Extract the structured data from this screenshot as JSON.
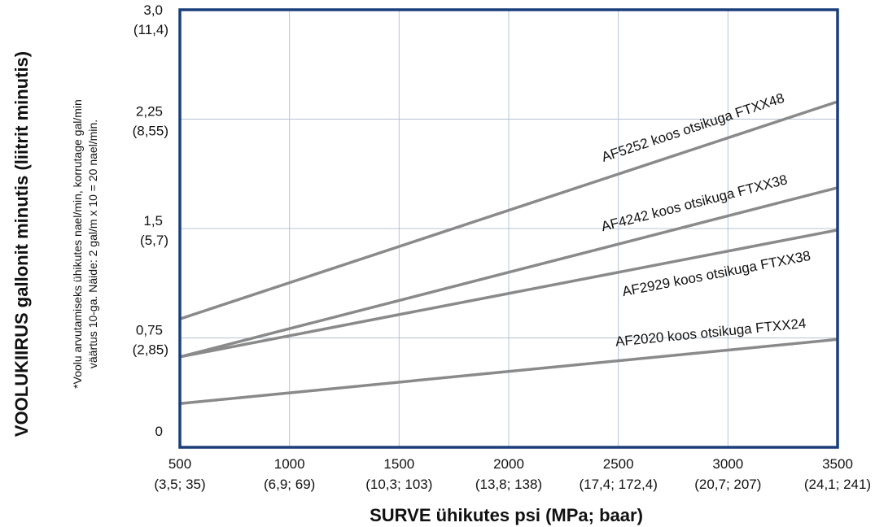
{
  "chart_data": {
    "type": "line",
    "xlabel": "SURVE ühikutes psi (MPa; baar)",
    "ylabel_bold": "VOOLUKIIRUS",
    "ylabel_rest": " gallonit minutis (liitrit minutis)",
    "note_lines": [
      "*Voolu arvutamiseks ühikutes nael/min, korrutage gal/min",
      "väärtus 10-ga. Näide: 2 gal/m x 10 = 20 nael/min."
    ],
    "xlim": [
      500,
      3500
    ],
    "ylim": [
      0,
      3.0
    ],
    "x_ticks": [
      {
        "value": 500,
        "label": "500",
        "sub": "(3,5; 35)"
      },
      {
        "value": 1000,
        "label": "1000",
        "sub": "(6,9; 69)"
      },
      {
        "value": 1500,
        "label": "1500",
        "sub": "(10,3; 103)"
      },
      {
        "value": 2000,
        "label": "2000",
        "sub": "(13,8; 138)"
      },
      {
        "value": 2500,
        "label": "2500",
        "sub": "(17,4; 172,4)"
      },
      {
        "value": 3000,
        "label": "3000",
        "sub": "(20,7; 207)"
      },
      {
        "value": 3500,
        "label": "3500",
        "sub": "(24,1; 241)"
      }
    ],
    "y_ticks": [
      {
        "value": 3.0,
        "label": "3,0",
        "sub": "(11,4)"
      },
      {
        "value": 2.25,
        "label": "2,25",
        "sub": "(8,55)"
      },
      {
        "value": 1.5,
        "label": "1,5",
        "sub": "(5,7)"
      },
      {
        "value": 0.75,
        "label": "0,75",
        "sub": "(2,85)"
      },
      {
        "value": 0,
        "label": "0",
        "sub": ""
      }
    ],
    "grid": true,
    "series": [
      {
        "name": "AF5252 koos otsikuga FTXX48",
        "x": [
          500,
          3500
        ],
        "values": [
          0.88,
          2.37
        ],
        "label_at": 0.79,
        "label_dy": -20
      },
      {
        "name": "AF4242 koos otsikuga FTXX38",
        "x": [
          500,
          3500
        ],
        "values": [
          0.62,
          1.78
        ],
        "label_at": 0.79,
        "label_dy": -20
      },
      {
        "name": "AF2929 koos otsikuga FTXX38",
        "x": [
          500,
          3500
        ],
        "values": [
          0.62,
          1.49
        ],
        "label_at": 0.81,
        "label_dy": 30
      },
      {
        "name": "AF2020 koos otsikuga FTXX24",
        "x": [
          500,
          3500
        ],
        "values": [
          0.3,
          0.74
        ],
        "label_at": 0.81,
        "label_dy": -18
      }
    ],
    "colors": {
      "line": "#8a8a8a",
      "frame": "#1a3f7a",
      "grid": "#b5c4d6"
    }
  }
}
